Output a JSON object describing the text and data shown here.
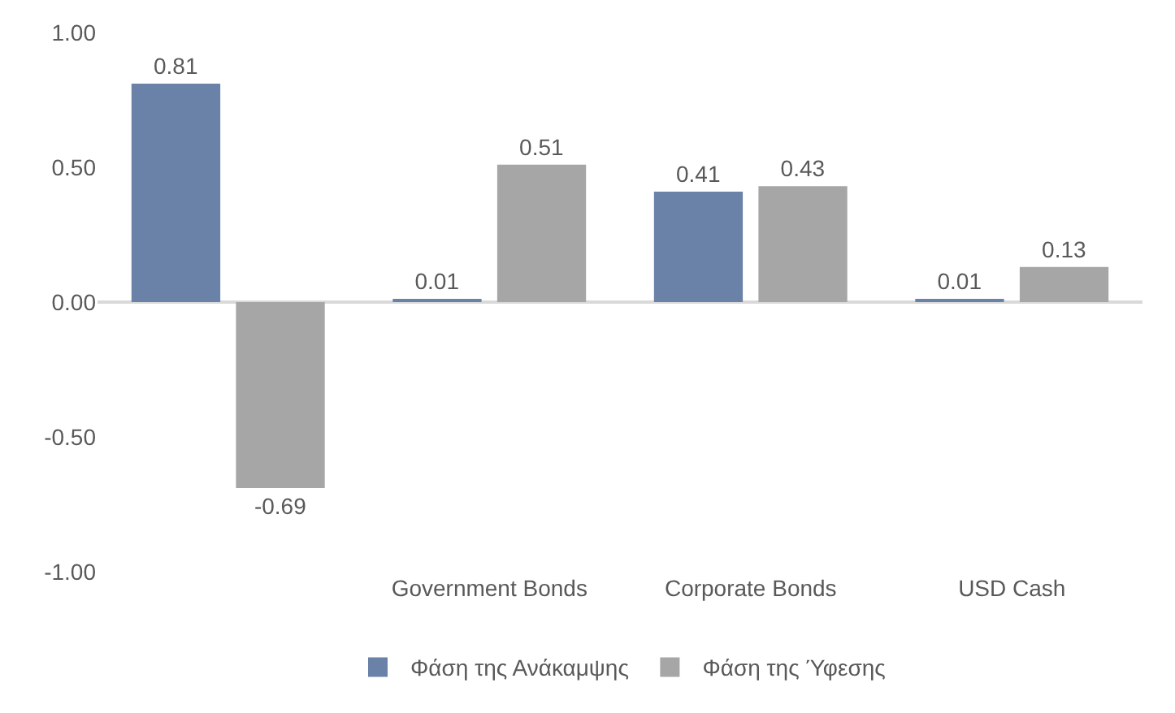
{
  "chart_data": {
    "type": "bar",
    "categories": [
      null,
      "Government Bonds",
      "Corporate Bonds",
      "USD Cash"
    ],
    "series": [
      {
        "name": "Φάση της Ανάκαμψης",
        "color": "#6a82a8",
        "values": [
          0.81,
          0.01,
          0.41,
          0.01
        ]
      },
      {
        "name": "Φάση της Ύφεσης",
        "color": "#a6a6a6",
        "values": [
          -0.69,
          0.51,
          0.43,
          0.13
        ]
      }
    ],
    "ylim": [
      -1.0,
      1.0
    ],
    "yticks": [
      {
        "value": -1.0,
        "label": "-1.00"
      },
      {
        "value": -0.5,
        "label": "-0.50"
      },
      {
        "value": 0.0,
        "label": "0.00"
      },
      {
        "value": 0.5,
        "label": "0.50"
      },
      {
        "value": 1.0,
        "label": "1.00"
      }
    ],
    "data_labels": true,
    "legend": "bottom"
  }
}
